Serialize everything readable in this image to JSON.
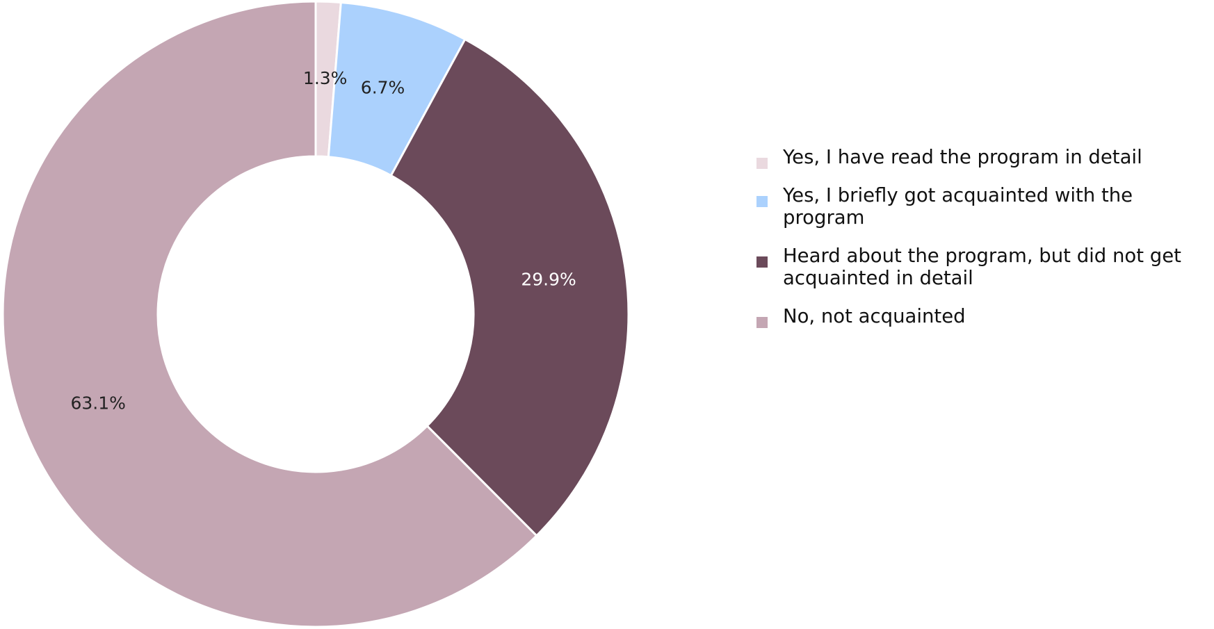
{
  "chart_data": {
    "type": "pie",
    "donut": true,
    "categories": [
      "Yes, I have read the program in detail",
      "Yes, I briefly got acquainted with the program",
      "Heard about the program, but did not get acquainted in detail",
      "No, not acquainted"
    ],
    "values": [
      1.3,
      6.7,
      29.9,
      63.1
    ],
    "data_labels": [
      "1.3%",
      "6.7%",
      "29.9%",
      "63.1%"
    ],
    "colors": [
      "#ead9df",
      "#abd1fd",
      "#6b4a5a",
      "#c4a6b3"
    ],
    "label_colors": [
      "#222222",
      "#222222",
      "#ffffff",
      "#222222"
    ],
    "legend_position": "right"
  }
}
